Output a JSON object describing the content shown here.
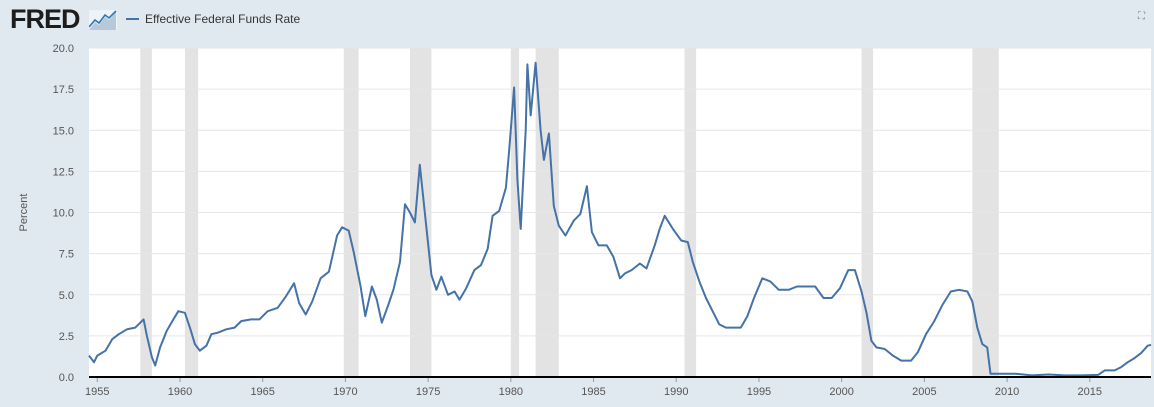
{
  "header": {
    "logo_text": "FRED",
    "legend_label": "Effective Federal Funds Rate"
  },
  "colors": {
    "series": "#4572a7",
    "recession": "#e3e3e3",
    "background": "#e1e9f0",
    "plot": "#ffffff"
  },
  "icons": {
    "logo_mark": "chart-line-icon",
    "fullscreen": "fullscreen-icon"
  },
  "chart_data": {
    "type": "line",
    "title": "",
    "xlabel": "",
    "ylabel": "Percent",
    "xlim": [
      1954.5,
      2018.7
    ],
    "ylim": [
      0,
      20
    ],
    "grid": true,
    "legend_position": "top-left",
    "x_ticks": [
      1955,
      1960,
      1965,
      1970,
      1975,
      1980,
      1985,
      1990,
      1995,
      2000,
      2005,
      2010,
      2015
    ],
    "y_ticks": [
      0.0,
      2.5,
      5.0,
      7.5,
      10.0,
      12.5,
      15.0,
      17.5,
      20.0
    ],
    "y_tick_labels": [
      "0.0",
      "2.5",
      "5.0",
      "7.5",
      "10.0",
      "12.5",
      "15.0",
      "17.5",
      "20.0"
    ],
    "recessions": [
      [
        1957.6,
        1958.3
      ],
      [
        1960.3,
        1961.1
      ],
      [
        1969.9,
        1970.8
      ],
      [
        1973.9,
        1975.2
      ],
      [
        1980.0,
        1980.5
      ],
      [
        1981.5,
        1982.9
      ],
      [
        1990.5,
        1991.2
      ],
      [
        2001.2,
        2001.9
      ],
      [
        2007.9,
        2009.5
      ]
    ],
    "series": [
      {
        "name": "Effective Federal Funds Rate",
        "points": [
          [
            1954.5,
            1.3
          ],
          [
            1954.8,
            0.9
          ],
          [
            1955.0,
            1.3
          ],
          [
            1955.5,
            1.6
          ],
          [
            1955.9,
            2.3
          ],
          [
            1956.3,
            2.6
          ],
          [
            1956.8,
            2.9
          ],
          [
            1957.3,
            3.0
          ],
          [
            1957.8,
            3.5
          ],
          [
            1958.0,
            2.5
          ],
          [
            1958.3,
            1.2
          ],
          [
            1958.5,
            0.7
          ],
          [
            1958.8,
            1.8
          ],
          [
            1959.2,
            2.8
          ],
          [
            1959.6,
            3.5
          ],
          [
            1959.9,
            4.0
          ],
          [
            1960.3,
            3.9
          ],
          [
            1960.6,
            3.0
          ],
          [
            1960.9,
            2.0
          ],
          [
            1961.2,
            1.6
          ],
          [
            1961.6,
            1.9
          ],
          [
            1961.9,
            2.6
          ],
          [
            1962.3,
            2.7
          ],
          [
            1962.8,
            2.9
          ],
          [
            1963.3,
            3.0
          ],
          [
            1963.7,
            3.4
          ],
          [
            1964.3,
            3.5
          ],
          [
            1964.8,
            3.5
          ],
          [
            1965.3,
            4.0
          ],
          [
            1965.9,
            4.2
          ],
          [
            1966.4,
            4.9
          ],
          [
            1966.9,
            5.7
          ],
          [
            1967.2,
            4.5
          ],
          [
            1967.6,
            3.8
          ],
          [
            1968.0,
            4.6
          ],
          [
            1968.5,
            6.0
          ],
          [
            1969.0,
            6.4
          ],
          [
            1969.5,
            8.6
          ],
          [
            1969.8,
            9.1
          ],
          [
            1970.2,
            8.9
          ],
          [
            1970.5,
            7.6
          ],
          [
            1970.9,
            5.6
          ],
          [
            1971.2,
            3.7
          ],
          [
            1971.6,
            5.5
          ],
          [
            1971.9,
            4.7
          ],
          [
            1972.2,
            3.3
          ],
          [
            1972.6,
            4.4
          ],
          [
            1972.9,
            5.3
          ],
          [
            1973.3,
            7.0
          ],
          [
            1973.6,
            10.5
          ],
          [
            1973.9,
            10.0
          ],
          [
            1974.2,
            9.4
          ],
          [
            1974.5,
            12.9
          ],
          [
            1974.8,
            10.0
          ],
          [
            1975.2,
            6.2
          ],
          [
            1975.5,
            5.3
          ],
          [
            1975.8,
            6.1
          ],
          [
            1976.2,
            5.0
          ],
          [
            1976.6,
            5.2
          ],
          [
            1976.9,
            4.7
          ],
          [
            1977.3,
            5.4
          ],
          [
            1977.8,
            6.5
          ],
          [
            1978.2,
            6.8
          ],
          [
            1978.6,
            7.8
          ],
          [
            1978.9,
            9.8
          ],
          [
            1979.3,
            10.1
          ],
          [
            1979.7,
            11.5
          ],
          [
            1979.9,
            13.8
          ],
          [
            1980.2,
            17.6
          ],
          [
            1980.4,
            12.0
          ],
          [
            1980.6,
            9.0
          ],
          [
            1980.9,
            15.0
          ],
          [
            1981.0,
            19.0
          ],
          [
            1981.2,
            15.9
          ],
          [
            1981.5,
            19.1
          ],
          [
            1981.8,
            15.0
          ],
          [
            1982.0,
            13.2
          ],
          [
            1982.3,
            14.8
          ],
          [
            1982.6,
            10.4
          ],
          [
            1982.9,
            9.2
          ],
          [
            1983.3,
            8.6
          ],
          [
            1983.8,
            9.5
          ],
          [
            1984.2,
            9.9
          ],
          [
            1984.6,
            11.6
          ],
          [
            1984.9,
            8.8
          ],
          [
            1985.3,
            8.0
          ],
          [
            1985.8,
            8.0
          ],
          [
            1986.2,
            7.3
          ],
          [
            1986.6,
            6.0
          ],
          [
            1986.9,
            6.3
          ],
          [
            1987.3,
            6.5
          ],
          [
            1987.8,
            6.9
          ],
          [
            1988.2,
            6.6
          ],
          [
            1988.7,
            8.0
          ],
          [
            1989.0,
            9.0
          ],
          [
            1989.3,
            9.8
          ],
          [
            1989.8,
            9.0
          ],
          [
            1990.3,
            8.3
          ],
          [
            1990.7,
            8.2
          ],
          [
            1991.0,
            7.0
          ],
          [
            1991.4,
            5.8
          ],
          [
            1991.8,
            4.8
          ],
          [
            1992.2,
            4.0
          ],
          [
            1992.6,
            3.2
          ],
          [
            1993.0,
            3.0
          ],
          [
            1993.5,
            3.0
          ],
          [
            1993.9,
            3.0
          ],
          [
            1994.3,
            3.7
          ],
          [
            1994.7,
            4.8
          ],
          [
            1995.2,
            6.0
          ],
          [
            1995.7,
            5.8
          ],
          [
            1996.2,
            5.3
          ],
          [
            1996.8,
            5.3
          ],
          [
            1997.3,
            5.5
          ],
          [
            1997.9,
            5.5
          ],
          [
            1998.4,
            5.5
          ],
          [
            1998.9,
            4.8
          ],
          [
            1999.4,
            4.8
          ],
          [
            1999.9,
            5.4
          ],
          [
            2000.4,
            6.5
          ],
          [
            2000.8,
            6.5
          ],
          [
            2001.2,
            5.2
          ],
          [
            2001.5,
            3.9
          ],
          [
            2001.8,
            2.2
          ],
          [
            2002.1,
            1.8
          ],
          [
            2002.6,
            1.7
          ],
          [
            2003.1,
            1.3
          ],
          [
            2003.6,
            1.0
          ],
          [
            2004.2,
            1.0
          ],
          [
            2004.6,
            1.5
          ],
          [
            2005.1,
            2.6
          ],
          [
            2005.6,
            3.4
          ],
          [
            2006.1,
            4.4
          ],
          [
            2006.6,
            5.2
          ],
          [
            2007.1,
            5.3
          ],
          [
            2007.6,
            5.2
          ],
          [
            2007.9,
            4.6
          ],
          [
            2008.2,
            3.0
          ],
          [
            2008.5,
            2.0
          ],
          [
            2008.8,
            1.8
          ],
          [
            2009.0,
            0.2
          ],
          [
            2009.5,
            0.2
          ],
          [
            2010.5,
            0.2
          ],
          [
            2011.5,
            0.1
          ],
          [
            2012.5,
            0.15
          ],
          [
            2013.5,
            0.1
          ],
          [
            2014.5,
            0.1
          ],
          [
            2015.5,
            0.13
          ],
          [
            2015.9,
            0.4
          ],
          [
            2016.5,
            0.4
          ],
          [
            2016.9,
            0.6
          ],
          [
            2017.3,
            0.9
          ],
          [
            2017.7,
            1.15
          ],
          [
            2018.1,
            1.45
          ],
          [
            2018.5,
            1.9
          ],
          [
            2018.7,
            1.95
          ]
        ]
      }
    ]
  }
}
